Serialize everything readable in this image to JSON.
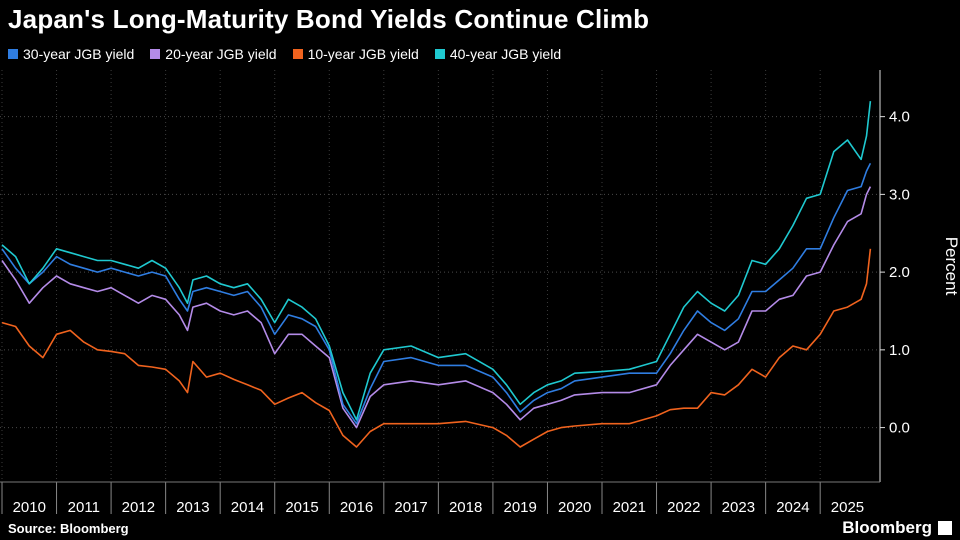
{
  "header": {
    "title": "Japan's Long-Maturity Bond Yields Continue Climb"
  },
  "footer": {
    "source": "Source: Bloomberg",
    "brand": "Bloomberg"
  },
  "chart_data": {
    "type": "line",
    "ylabel": "Percent",
    "ylim": [
      -0.7,
      4.6
    ],
    "yticks": [
      0.0,
      1.0,
      2.0,
      3.0,
      4.0
    ],
    "ytick_labels": [
      "0.0",
      "1.0",
      "2.0",
      "3.0",
      "4.0"
    ],
    "xlim": [
      2010.0,
      2025.95
    ],
    "year_labels": [
      "2010",
      "2011",
      "2012",
      "2013",
      "2014",
      "2015",
      "2016",
      "2017",
      "2018",
      "2019",
      "2020",
      "2021",
      "2022",
      "2023",
      "2024",
      "2025"
    ],
    "grid": true,
    "legend_position": "top-left",
    "series": [
      {
        "name": "30-year JGB yield",
        "color": "#2f7de1",
        "x": [
          2010.0,
          2010.25,
          2010.5,
          2010.75,
          2011.0,
          2011.25,
          2011.5,
          2011.75,
          2012.0,
          2012.25,
          2012.5,
          2012.75,
          2013.0,
          2013.25,
          2013.4,
          2013.5,
          2013.75,
          2014.0,
          2014.25,
          2014.5,
          2014.75,
          2015.0,
          2015.25,
          2015.5,
          2015.75,
          2016.0,
          2016.25,
          2016.5,
          2016.75,
          2017.0,
          2017.5,
          2018.0,
          2018.5,
          2019.0,
          2019.25,
          2019.5,
          2019.75,
          2020.0,
          2020.25,
          2020.5,
          2021.0,
          2021.5,
          2022.0,
          2022.25,
          2022.5,
          2022.75,
          2023.0,
          2023.25,
          2023.5,
          2023.75,
          2024.0,
          2024.25,
          2024.5,
          2024.75,
          2025.0,
          2025.25,
          2025.5,
          2025.75,
          2025.85,
          2025.92
        ],
        "y": [
          2.3,
          2.05,
          1.85,
          2.0,
          2.2,
          2.1,
          2.05,
          2.0,
          2.05,
          2.0,
          1.95,
          2.0,
          1.95,
          1.65,
          1.5,
          1.75,
          1.8,
          1.75,
          1.7,
          1.75,
          1.55,
          1.2,
          1.45,
          1.4,
          1.3,
          1.0,
          0.3,
          0.05,
          0.5,
          0.85,
          0.9,
          0.8,
          0.8,
          0.65,
          0.45,
          0.2,
          0.35,
          0.45,
          0.5,
          0.6,
          0.65,
          0.7,
          0.7,
          0.95,
          1.25,
          1.5,
          1.35,
          1.25,
          1.4,
          1.75,
          1.75,
          1.9,
          2.05,
          2.3,
          2.3,
          2.7,
          3.05,
          3.1,
          3.3,
          3.4
        ]
      },
      {
        "name": "20-year JGB yield",
        "color": "#b48be8",
        "x": [
          2010.0,
          2010.25,
          2010.5,
          2010.75,
          2011.0,
          2011.25,
          2011.5,
          2011.75,
          2012.0,
          2012.25,
          2012.5,
          2012.75,
          2013.0,
          2013.25,
          2013.4,
          2013.5,
          2013.75,
          2014.0,
          2014.25,
          2014.5,
          2014.75,
          2015.0,
          2015.25,
          2015.5,
          2015.75,
          2016.0,
          2016.25,
          2016.5,
          2016.75,
          2017.0,
          2017.5,
          2018.0,
          2018.5,
          2019.0,
          2019.25,
          2019.5,
          2019.75,
          2020.0,
          2020.25,
          2020.5,
          2021.0,
          2021.5,
          2022.0,
          2022.25,
          2022.5,
          2022.75,
          2023.0,
          2023.25,
          2023.5,
          2023.75,
          2024.0,
          2024.25,
          2024.5,
          2024.75,
          2025.0,
          2025.25,
          2025.5,
          2025.75,
          2025.85,
          2025.92
        ],
        "y": [
          2.15,
          1.9,
          1.6,
          1.8,
          1.95,
          1.85,
          1.8,
          1.75,
          1.8,
          1.7,
          1.6,
          1.7,
          1.65,
          1.45,
          1.25,
          1.55,
          1.6,
          1.5,
          1.45,
          1.5,
          1.35,
          0.95,
          1.2,
          1.2,
          1.05,
          0.9,
          0.25,
          0.0,
          0.4,
          0.55,
          0.6,
          0.55,
          0.6,
          0.45,
          0.3,
          0.1,
          0.25,
          0.3,
          0.35,
          0.42,
          0.45,
          0.45,
          0.55,
          0.8,
          1.0,
          1.2,
          1.1,
          1.0,
          1.1,
          1.5,
          1.5,
          1.65,
          1.7,
          1.95,
          2.0,
          2.35,
          2.65,
          2.75,
          3.0,
          3.1
        ]
      },
      {
        "name": "10-year JGB yield",
        "color": "#f0631e",
        "x": [
          2010.0,
          2010.25,
          2010.5,
          2010.75,
          2011.0,
          2011.25,
          2011.5,
          2011.75,
          2012.0,
          2012.25,
          2012.5,
          2012.75,
          2013.0,
          2013.25,
          2013.4,
          2013.5,
          2013.75,
          2014.0,
          2014.25,
          2014.5,
          2014.75,
          2015.0,
          2015.25,
          2015.5,
          2015.75,
          2016.0,
          2016.25,
          2016.5,
          2016.75,
          2017.0,
          2017.5,
          2018.0,
          2018.5,
          2019.0,
          2019.25,
          2019.5,
          2019.75,
          2020.0,
          2020.25,
          2020.5,
          2021.0,
          2021.5,
          2022.0,
          2022.25,
          2022.5,
          2022.75,
          2023.0,
          2023.25,
          2023.5,
          2023.75,
          2024.0,
          2024.25,
          2024.5,
          2024.75,
          2025.0,
          2025.25,
          2025.5,
          2025.75,
          2025.85,
          2025.92
        ],
        "y": [
          1.35,
          1.3,
          1.05,
          0.9,
          1.2,
          1.25,
          1.1,
          1.0,
          0.98,
          0.95,
          0.8,
          0.78,
          0.75,
          0.6,
          0.45,
          0.85,
          0.65,
          0.7,
          0.62,
          0.55,
          0.48,
          0.3,
          0.38,
          0.45,
          0.32,
          0.22,
          -0.1,
          -0.25,
          -0.05,
          0.05,
          0.05,
          0.05,
          0.08,
          0.0,
          -0.1,
          -0.25,
          -0.15,
          -0.05,
          0.0,
          0.02,
          0.05,
          0.05,
          0.15,
          0.23,
          0.25,
          0.25,
          0.45,
          0.42,
          0.55,
          0.75,
          0.65,
          0.9,
          1.05,
          1.0,
          1.2,
          1.5,
          1.55,
          1.65,
          1.85,
          2.3
        ]
      },
      {
        "name": "40-year JGB yield",
        "color": "#1fc9d0",
        "x": [
          2010.0,
          2010.25,
          2010.5,
          2010.75,
          2011.0,
          2011.25,
          2011.5,
          2011.75,
          2012.0,
          2012.25,
          2012.5,
          2012.75,
          2013.0,
          2013.25,
          2013.4,
          2013.5,
          2013.75,
          2014.0,
          2014.25,
          2014.5,
          2014.75,
          2015.0,
          2015.25,
          2015.5,
          2015.75,
          2016.0,
          2016.25,
          2016.5,
          2016.75,
          2017.0,
          2017.5,
          2018.0,
          2018.5,
          2019.0,
          2019.25,
          2019.5,
          2019.75,
          2020.0,
          2020.25,
          2020.5,
          2021.0,
          2021.5,
          2022.0,
          2022.25,
          2022.5,
          2022.75,
          2023.0,
          2023.25,
          2023.5,
          2023.75,
          2024.0,
          2024.25,
          2024.5,
          2024.75,
          2025.0,
          2025.25,
          2025.5,
          2025.75,
          2025.85,
          2025.92
        ],
        "y": [
          2.35,
          2.2,
          1.85,
          2.05,
          2.3,
          2.25,
          2.2,
          2.15,
          2.15,
          2.1,
          2.05,
          2.15,
          2.05,
          1.8,
          1.6,
          1.9,
          1.95,
          1.85,
          1.8,
          1.85,
          1.65,
          1.35,
          1.65,
          1.55,
          1.4,
          1.05,
          0.45,
          0.1,
          0.7,
          1.0,
          1.05,
          0.9,
          0.95,
          0.75,
          0.55,
          0.3,
          0.45,
          0.55,
          0.6,
          0.7,
          0.72,
          0.75,
          0.85,
          1.2,
          1.55,
          1.75,
          1.6,
          1.5,
          1.7,
          2.15,
          2.1,
          2.3,
          2.6,
          2.95,
          3.0,
          3.55,
          3.7,
          3.45,
          3.75,
          4.2
        ]
      }
    ]
  }
}
